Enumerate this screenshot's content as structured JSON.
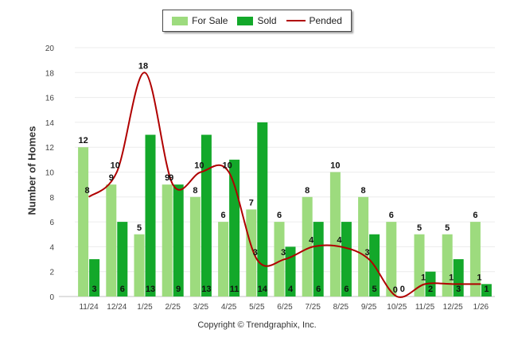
{
  "chart_data": {
    "type": "bar",
    "title": "",
    "xlabel": "",
    "ylabel": "Number of Homes",
    "ylim": [
      0,
      20
    ],
    "yticks": [
      0,
      2,
      4,
      6,
      8,
      10,
      12,
      14,
      16,
      18,
      20
    ],
    "categories": [
      "11/24",
      "12/24",
      "1/25",
      "2/25",
      "3/25",
      "4/25",
      "5/25",
      "6/25",
      "7/25",
      "8/25",
      "9/25",
      "10/25",
      "11/25",
      "12/25",
      "1/26"
    ],
    "series": [
      {
        "name": "For Sale",
        "kind": "bar",
        "color": "#9ddb7e",
        "values": [
          12,
          9,
          5,
          9,
          8,
          6,
          7,
          6,
          8,
          10,
          8,
          6,
          5,
          5,
          6
        ]
      },
      {
        "name": "Sold",
        "kind": "bar",
        "color": "#13a82a",
        "values": [
          3,
          6,
          13,
          9,
          13,
          11,
          14,
          4,
          6,
          6,
          5,
          0,
          2,
          3,
          1
        ]
      },
      {
        "name": "Pended",
        "kind": "line",
        "color": "#b00000",
        "values": [
          8,
          10,
          18,
          9,
          10,
          10,
          3,
          3,
          4,
          4,
          3,
          0,
          1,
          1,
          1
        ]
      }
    ],
    "copyright": "Copyright © Trendgraphix, Inc."
  }
}
